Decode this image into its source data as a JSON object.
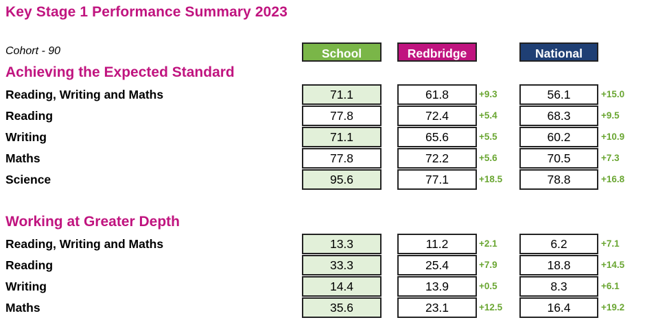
{
  "title": "Key Stage 1 Performance Summary 2023",
  "cohort": "Cohort - 90",
  "headers": {
    "school": "School",
    "redbridge": "Redbridge",
    "national": "National"
  },
  "colors": {
    "title": "#c0147f",
    "school_header": "#7ab648",
    "redbridge_header": "#c0147f",
    "national_header": "#1f3f74",
    "green_cell": "#e2f0d9",
    "diff_text": "#6aa632"
  },
  "sections": [
    {
      "title": "Achieving the Expected Standard",
      "rows": [
        {
          "label": "Reading, Writing and Maths",
          "school": "71.1",
          "school_highlight": true,
          "redbridge": "61.8",
          "redbridge_diff": "+9.3",
          "national": "56.1",
          "national_diff": "+15.0"
        },
        {
          "label": "Reading",
          "school": "77.8",
          "school_highlight": false,
          "redbridge": "72.4",
          "redbridge_diff": "+5.4",
          "national": "68.3",
          "national_diff": "+9.5"
        },
        {
          "label": "Writing",
          "school": "71.1",
          "school_highlight": true,
          "redbridge": "65.6",
          "redbridge_diff": "+5.5",
          "national": "60.2",
          "national_diff": "+10.9"
        },
        {
          "label": "Maths",
          "school": "77.8",
          "school_highlight": false,
          "redbridge": "72.2",
          "redbridge_diff": "+5.6",
          "national": "70.5",
          "national_diff": "+7.3"
        },
        {
          "label": "Science",
          "school": "95.6",
          "school_highlight": true,
          "redbridge": "77.1",
          "redbridge_diff": "+18.5",
          "national": "78.8",
          "national_diff": "+16.8"
        }
      ]
    },
    {
      "title": "Working at Greater Depth",
      "rows": [
        {
          "label": "Reading, Writing and Maths",
          "school": "13.3",
          "school_highlight": true,
          "redbridge": "11.2",
          "redbridge_diff": "+2.1",
          "national": "6.2",
          "national_diff": "+7.1"
        },
        {
          "label": "Reading",
          "school": "33.3",
          "school_highlight": true,
          "redbridge": "25.4",
          "redbridge_diff": "+7.9",
          "national": "18.8",
          "national_diff": "+14.5"
        },
        {
          "label": "Writing",
          "school": "14.4",
          "school_highlight": true,
          "redbridge": "13.9",
          "redbridge_diff": "+0.5",
          "national": "8.3",
          "national_diff": "+6.1"
        },
        {
          "label": "Maths",
          "school": "35.6",
          "school_highlight": true,
          "redbridge": "23.1",
          "redbridge_diff": "+12.5",
          "national": "16.4",
          "national_diff": "+19.2"
        }
      ]
    }
  ]
}
